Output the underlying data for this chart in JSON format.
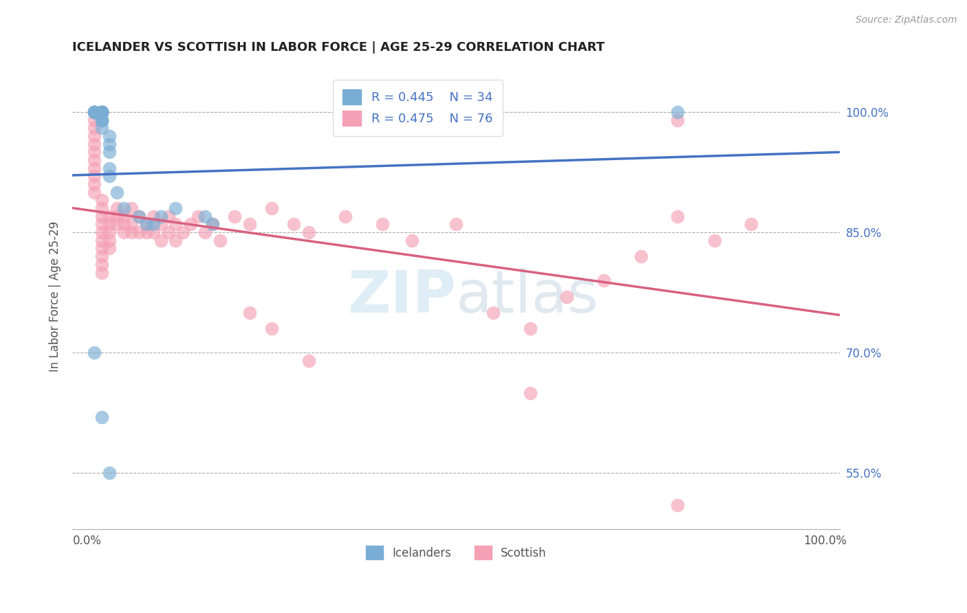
{
  "title": "ICELANDER VS SCOTTISH IN LABOR FORCE | AGE 25-29 CORRELATION CHART",
  "source": "Source: ZipAtlas.com",
  "ylabel": "In Labor Force | Age 25-29",
  "ytick_values": [
    0.55,
    0.7,
    0.85,
    1.0
  ],
  "ytick_labels": [
    "55.0%",
    "70.0%",
    "85.0%",
    "100.0%"
  ],
  "xlim": [
    0.0,
    1.0
  ],
  "ylim": [
    0.48,
    1.06
  ],
  "icelander_color": "#7aadd4",
  "scottish_color": "#f4a0b5",
  "line_blue": "#4472c4",
  "line_pink": "#d96080",
  "icelander_R": 0.445,
  "icelander_N": 34,
  "scottish_R": 0.475,
  "scottish_N": 76,
  "watermark_zip": "ZIP",
  "watermark_atlas": "atlas",
  "icelander_x": [
    0.01,
    0.01,
    0.01,
    0.01,
    0.01,
    0.02,
    0.02,
    0.02,
    0.02,
    0.02,
    0.02,
    0.02,
    0.02,
    0.02,
    0.02,
    0.02,
    0.03,
    0.03,
    0.03,
    0.03,
    0.03,
    0.04,
    0.05,
    0.07,
    0.08,
    0.09,
    0.1,
    0.12,
    0.16,
    0.17,
    0.01,
    0.02,
    0.03,
    0.8
  ],
  "icelander_y": [
    1.0,
    1.0,
    1.0,
    1.0,
    1.0,
    1.0,
    1.0,
    1.0,
    1.0,
    1.0,
    1.0,
    1.0,
    0.99,
    0.99,
    0.99,
    0.98,
    0.97,
    0.96,
    0.95,
    0.93,
    0.92,
    0.9,
    0.88,
    0.87,
    0.86,
    0.86,
    0.87,
    0.88,
    0.87,
    0.86,
    0.7,
    0.62,
    0.55,
    1.0
  ],
  "scottish_x": [
    0.01,
    0.01,
    0.01,
    0.01,
    0.01,
    0.01,
    0.01,
    0.01,
    0.01,
    0.01,
    0.01,
    0.02,
    0.02,
    0.02,
    0.02,
    0.02,
    0.02,
    0.02,
    0.02,
    0.02,
    0.02,
    0.03,
    0.03,
    0.03,
    0.03,
    0.03,
    0.04,
    0.04,
    0.04,
    0.05,
    0.05,
    0.05,
    0.06,
    0.06,
    0.06,
    0.07,
    0.07,
    0.08,
    0.08,
    0.09,
    0.09,
    0.1,
    0.1,
    0.11,
    0.11,
    0.12,
    0.12,
    0.13,
    0.14,
    0.15,
    0.16,
    0.17,
    0.18,
    0.2,
    0.22,
    0.25,
    0.28,
    0.3,
    0.35,
    0.4,
    0.44,
    0.5,
    0.55,
    0.6,
    0.65,
    0.7,
    0.75,
    0.8,
    0.85,
    0.9,
    0.22,
    0.25,
    0.3,
    0.6,
    0.8,
    0.8
  ],
  "scottish_y": [
    1.0,
    0.99,
    0.98,
    0.97,
    0.96,
    0.95,
    0.94,
    0.93,
    0.92,
    0.91,
    0.9,
    0.89,
    0.88,
    0.87,
    0.86,
    0.85,
    0.84,
    0.83,
    0.82,
    0.81,
    0.8,
    0.87,
    0.86,
    0.85,
    0.84,
    0.83,
    0.88,
    0.87,
    0.86,
    0.87,
    0.86,
    0.85,
    0.88,
    0.86,
    0.85,
    0.87,
    0.85,
    0.86,
    0.85,
    0.87,
    0.85,
    0.86,
    0.84,
    0.87,
    0.85,
    0.86,
    0.84,
    0.85,
    0.86,
    0.87,
    0.85,
    0.86,
    0.84,
    0.87,
    0.86,
    0.88,
    0.86,
    0.85,
    0.87,
    0.86,
    0.84,
    0.86,
    0.75,
    0.73,
    0.77,
    0.79,
    0.82,
    0.87,
    0.84,
    0.86,
    0.75,
    0.73,
    0.69,
    0.65,
    0.51,
    0.99
  ]
}
